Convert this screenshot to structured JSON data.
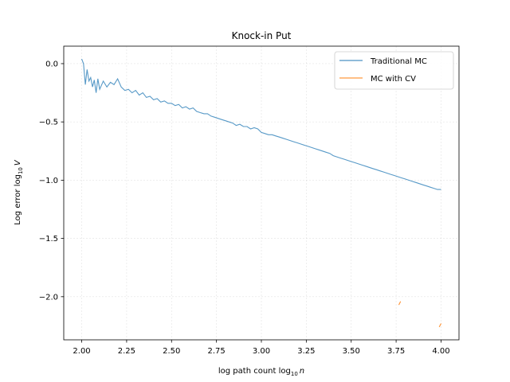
{
  "chart_data": {
    "type": "line",
    "title": "Knock-in Put",
    "xlabel_text": "log path count log",
    "xlabel_sub": "10",
    "xlabel_var": "n",
    "ylabel_text": "Log error log",
    "ylabel_sub": "10",
    "ylabel_var": "V",
    "xlim": [
      1.9,
      4.1
    ],
    "ylim": [
      -2.37,
      0.15
    ],
    "x_ticks": [
      2.0,
      2.25,
      2.5,
      2.75,
      3.0,
      3.25,
      3.5,
      3.75,
      4.0
    ],
    "x_tick_labels": [
      "2.00",
      "2.25",
      "2.50",
      "2.75",
      "3.00",
      "3.25",
      "3.50",
      "3.75",
      "4.00"
    ],
    "y_ticks": [
      0.0,
      -0.5,
      -1.0,
      -1.5,
      -2.0
    ],
    "y_tick_labels": [
      "0.0",
      "−0.5",
      "−1.0",
      "−1.5",
      "−2.0"
    ],
    "grid": true,
    "legend_position": "top-right",
    "series": [
      {
        "name": "Traditional MC",
        "color": "#1f77b4",
        "points": [
          [
            2.0,
            0.04
          ],
          [
            2.01,
            0.0
          ],
          [
            2.02,
            -0.18
          ],
          [
            2.03,
            -0.05
          ],
          [
            2.04,
            -0.15
          ],
          [
            2.05,
            -0.12
          ],
          [
            2.06,
            -0.2
          ],
          [
            2.07,
            -0.14
          ],
          [
            2.08,
            -0.25
          ],
          [
            2.09,
            -0.13
          ],
          [
            2.1,
            -0.22
          ],
          [
            2.12,
            -0.15
          ],
          [
            2.14,
            -0.2
          ],
          [
            2.16,
            -0.16
          ],
          [
            2.18,
            -0.18
          ],
          [
            2.2,
            -0.13
          ],
          [
            2.22,
            -0.2
          ],
          [
            2.24,
            -0.23
          ],
          [
            2.26,
            -0.22
          ],
          [
            2.28,
            -0.25
          ],
          [
            2.3,
            -0.23
          ],
          [
            2.32,
            -0.27
          ],
          [
            2.34,
            -0.25
          ],
          [
            2.36,
            -0.29
          ],
          [
            2.38,
            -0.28
          ],
          [
            2.4,
            -0.31
          ],
          [
            2.42,
            -0.3
          ],
          [
            2.44,
            -0.33
          ],
          [
            2.46,
            -0.32
          ],
          [
            2.48,
            -0.34
          ],
          [
            2.5,
            -0.34
          ],
          [
            2.52,
            -0.36
          ],
          [
            2.54,
            -0.35
          ],
          [
            2.56,
            -0.38
          ],
          [
            2.58,
            -0.37
          ],
          [
            2.6,
            -0.39
          ],
          [
            2.62,
            -0.38
          ],
          [
            2.64,
            -0.41
          ],
          [
            2.66,
            -0.42
          ],
          [
            2.68,
            -0.43
          ],
          [
            2.7,
            -0.43
          ],
          [
            2.72,
            -0.45
          ],
          [
            2.74,
            -0.46
          ],
          [
            2.76,
            -0.47
          ],
          [
            2.78,
            -0.48
          ],
          [
            2.8,
            -0.49
          ],
          [
            2.82,
            -0.5
          ],
          [
            2.84,
            -0.51
          ],
          [
            2.86,
            -0.53
          ],
          [
            2.88,
            -0.52
          ],
          [
            2.9,
            -0.54
          ],
          [
            2.92,
            -0.54
          ],
          [
            2.94,
            -0.56
          ],
          [
            2.96,
            -0.55
          ],
          [
            2.98,
            -0.56
          ],
          [
            3.0,
            -0.59
          ],
          [
            3.02,
            -0.6
          ],
          [
            3.04,
            -0.61
          ],
          [
            3.06,
            -0.61
          ],
          [
            3.08,
            -0.62
          ],
          [
            3.1,
            -0.63
          ],
          [
            3.12,
            -0.64
          ],
          [
            3.14,
            -0.65
          ],
          [
            3.16,
            -0.66
          ],
          [
            3.18,
            -0.67
          ],
          [
            3.2,
            -0.68
          ],
          [
            3.22,
            -0.69
          ],
          [
            3.24,
            -0.7
          ],
          [
            3.26,
            -0.71
          ],
          [
            3.28,
            -0.72
          ],
          [
            3.3,
            -0.73
          ],
          [
            3.32,
            -0.74
          ],
          [
            3.34,
            -0.75
          ],
          [
            3.36,
            -0.76
          ],
          [
            3.38,
            -0.77
          ],
          [
            3.4,
            -0.79
          ],
          [
            3.42,
            -0.8
          ],
          [
            3.44,
            -0.81
          ],
          [
            3.46,
            -0.82
          ],
          [
            3.48,
            -0.83
          ],
          [
            3.5,
            -0.84
          ],
          [
            3.52,
            -0.85
          ],
          [
            3.54,
            -0.86
          ],
          [
            3.56,
            -0.87
          ],
          [
            3.58,
            -0.88
          ],
          [
            3.6,
            -0.89
          ],
          [
            3.62,
            -0.9
          ],
          [
            3.64,
            -0.91
          ],
          [
            3.66,
            -0.92
          ],
          [
            3.68,
            -0.93
          ],
          [
            3.7,
            -0.94
          ],
          [
            3.72,
            -0.95
          ],
          [
            3.74,
            -0.96
          ],
          [
            3.76,
            -0.97
          ],
          [
            3.78,
            -0.98
          ],
          [
            3.8,
            -0.99
          ],
          [
            3.82,
            -1.0
          ],
          [
            3.84,
            -1.01
          ],
          [
            3.86,
            -1.02
          ],
          [
            3.88,
            -1.03
          ],
          [
            3.9,
            -1.04
          ],
          [
            3.92,
            -1.05
          ],
          [
            3.94,
            -1.06
          ],
          [
            3.96,
            -1.07
          ],
          [
            3.98,
            -1.08
          ],
          [
            4.0,
            -1.08
          ]
        ]
      },
      {
        "name": "MC with CV",
        "color": "#ff7f0e",
        "segments": [
          [
            [
              3.765,
              -2.07
            ],
            [
              3.775,
              -2.04
            ]
          ],
          [
            [
              3.99,
              -2.26
            ],
            [
              4.0,
              -2.23
            ]
          ]
        ]
      }
    ]
  }
}
